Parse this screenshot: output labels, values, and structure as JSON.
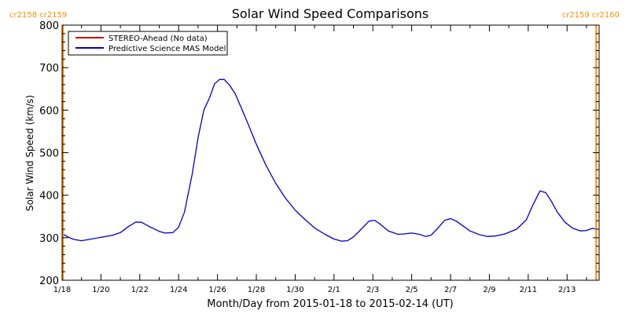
{
  "chart_data": {
    "type": "line",
    "title": "Solar Wind Speed Comparisons",
    "xlabel": "Month/Day from 2015-01-18 to 2015-02-14 (UT)",
    "ylabel": "Solar Wind Speed (km/s)",
    "xlim": [
      0,
      27.65
    ],
    "ylim": [
      200,
      800
    ],
    "x_ticks": [
      {
        "x": 0,
        "label": "1/18"
      },
      {
        "x": 2,
        "label": "1/20"
      },
      {
        "x": 4,
        "label": "1/22"
      },
      {
        "x": 6,
        "label": "1/24"
      },
      {
        "x": 8,
        "label": "1/26"
      },
      {
        "x": 10,
        "label": "1/28"
      },
      {
        "x": 12,
        "label": "1/30"
      },
      {
        "x": 14,
        "label": "2/1"
      },
      {
        "x": 16,
        "label": "2/3"
      },
      {
        "x": 18,
        "label": "2/5"
      },
      {
        "x": 20,
        "label": "2/7"
      },
      {
        "x": 22,
        "label": "2/9"
      },
      {
        "x": 24,
        "label": "2/11"
      },
      {
        "x": 26,
        "label": "2/13"
      }
    ],
    "y_ticks": [
      200,
      300,
      400,
      500,
      600,
      700,
      800
    ],
    "grid": false,
    "legend_position": "top-left",
    "legend": [
      {
        "label": "STEREO-Ahead (No data)",
        "color": "#cc0000"
      },
      {
        "label": "Predictive Science MAS Model",
        "color": "#0000cc"
      }
    ],
    "carrington": [
      {
        "x": 0.05,
        "left_label": "cr2158",
        "right_label": "cr2159",
        "color": "#ff8c00"
      },
      {
        "x": 27.5,
        "left_label": "cr2159",
        "right_label": "cr2160",
        "color": "#ff8c00"
      }
    ],
    "series": [
      {
        "name": "Predictive Science MAS Model",
        "color": "#0000cc",
        "points": [
          [
            0.0,
            310
          ],
          [
            0.3,
            302
          ],
          [
            0.6,
            296
          ],
          [
            1.0,
            293
          ],
          [
            1.4,
            296
          ],
          [
            2.0,
            301
          ],
          [
            2.6,
            306
          ],
          [
            3.0,
            312
          ],
          [
            3.4,
            326
          ],
          [
            3.8,
            337
          ],
          [
            4.1,
            336
          ],
          [
            4.5,
            326
          ],
          [
            5.0,
            315
          ],
          [
            5.3,
            311
          ],
          [
            5.7,
            312
          ],
          [
            6.0,
            325
          ],
          [
            6.3,
            360
          ],
          [
            6.7,
            450
          ],
          [
            7.0,
            535
          ],
          [
            7.3,
            600
          ],
          [
            7.6,
            630
          ],
          [
            7.85,
            662
          ],
          [
            8.1,
            672
          ],
          [
            8.35,
            672
          ],
          [
            8.6,
            660
          ],
          [
            8.9,
            640
          ],
          [
            9.2,
            608
          ],
          [
            9.6,
            565
          ],
          [
            10.0,
            520
          ],
          [
            10.5,
            470
          ],
          [
            11.0,
            428
          ],
          [
            11.5,
            393
          ],
          [
            12.0,
            365
          ],
          [
            12.5,
            343
          ],
          [
            13.0,
            323
          ],
          [
            13.5,
            309
          ],
          [
            14.0,
            297
          ],
          [
            14.4,
            292
          ],
          [
            14.7,
            293
          ],
          [
            15.0,
            302
          ],
          [
            15.4,
            320
          ],
          [
            15.8,
            339
          ],
          [
            16.1,
            341
          ],
          [
            16.4,
            331
          ],
          [
            16.8,
            316
          ],
          [
            17.3,
            308
          ],
          [
            17.6,
            309
          ],
          [
            18.0,
            311
          ],
          [
            18.4,
            308
          ],
          [
            18.7,
            303
          ],
          [
            19.0,
            306
          ],
          [
            19.3,
            320
          ],
          [
            19.7,
            341
          ],
          [
            20.0,
            345
          ],
          [
            20.3,
            339
          ],
          [
            20.7,
            326
          ],
          [
            21.0,
            316
          ],
          [
            21.5,
            307
          ],
          [
            21.9,
            303
          ],
          [
            22.3,
            304
          ],
          [
            22.8,
            309
          ],
          [
            23.4,
            320
          ],
          [
            23.9,
            342
          ],
          [
            24.2,
            373
          ],
          [
            24.6,
            410
          ],
          [
            24.9,
            406
          ],
          [
            25.2,
            385
          ],
          [
            25.5,
            360
          ],
          [
            25.9,
            336
          ],
          [
            26.3,
            322
          ],
          [
            26.7,
            316
          ],
          [
            27.0,
            317
          ],
          [
            27.3,
            322
          ],
          [
            27.55,
            320
          ]
        ]
      }
    ]
  }
}
